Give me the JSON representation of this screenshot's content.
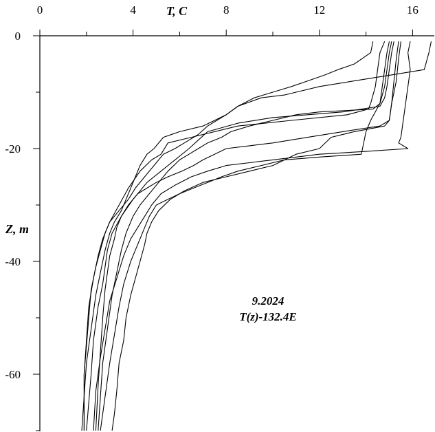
{
  "chart_data": {
    "type": "line",
    "title": "",
    "xlabel": "T, C",
    "ylabel": "Z, m",
    "x_ticks": [
      0,
      4,
      8,
      12,
      16
    ],
    "y_ticks": [
      0,
      -20,
      -40,
      -60
    ],
    "xlim": [
      0,
      16.8
    ],
    "ylim": [
      -70,
      0
    ],
    "grid": false,
    "annotations": [
      "9.2024",
      "T(z)-132.4E"
    ],
    "series": [
      {
        "values": [
          [
            14.8,
            -1
          ],
          [
            14.6,
            -3
          ],
          [
            14.5,
            -6
          ],
          [
            14.4,
            -9
          ],
          [
            14.2,
            -12
          ],
          [
            14.1,
            -13
          ],
          [
            13.2,
            -14
          ],
          [
            10.8,
            -15
          ],
          [
            8.5,
            -16
          ],
          [
            6.5,
            -18
          ],
          [
            5.5,
            -19
          ],
          [
            5.2,
            -21
          ],
          [
            4.8,
            -22
          ],
          [
            4.3,
            -24
          ],
          [
            3.8,
            -27
          ],
          [
            3.4,
            -30
          ],
          [
            3.0,
            -33
          ],
          [
            2.8,
            -35
          ],
          [
            2.6,
            -38
          ],
          [
            2.4,
            -41
          ],
          [
            2.2,
            -45
          ],
          [
            2.1,
            -50
          ],
          [
            2.0,
            -55
          ],
          [
            1.9,
            -60
          ],
          [
            1.9,
            -65
          ],
          [
            1.9,
            -70
          ]
        ]
      },
      {
        "values": [
          [
            15.2,
            -1
          ],
          [
            15.1,
            -3
          ],
          [
            15.0,
            -6
          ],
          [
            14.9,
            -9
          ],
          [
            14.8,
            -11
          ],
          [
            14.6,
            -12.5
          ],
          [
            13.0,
            -13.5
          ],
          [
            11.5,
            -14
          ],
          [
            10.0,
            -14.5
          ],
          [
            8.5,
            -15.5
          ],
          [
            7.2,
            -17
          ],
          [
            6.8,
            -18.5
          ],
          [
            6.4,
            -20
          ],
          [
            5.8,
            -22
          ],
          [
            5.2,
            -24
          ],
          [
            4.6,
            -26
          ],
          [
            4.0,
            -29
          ],
          [
            3.5,
            -32
          ],
          [
            3.1,
            -35
          ],
          [
            2.9,
            -38
          ],
          [
            2.8,
            -41
          ],
          [
            2.7,
            -44
          ],
          [
            2.5,
            -48
          ],
          [
            2.3,
            -54
          ],
          [
            2.2,
            -60
          ],
          [
            2.1,
            -65
          ],
          [
            2.0,
            -70
          ]
        ]
      },
      {
        "values": [
          [
            16.8,
            -1
          ],
          [
            16.7,
            -3
          ],
          [
            16.5,
            -6
          ],
          [
            15.0,
            -7
          ],
          [
            13.5,
            -8
          ],
          [
            12.0,
            -9
          ],
          [
            11.0,
            -10
          ],
          [
            10.5,
            -10.5
          ],
          [
            9.5,
            -11
          ],
          [
            8.5,
            -12.5
          ],
          [
            8.0,
            -14
          ],
          [
            7.5,
            -15
          ],
          [
            7.0,
            -16
          ],
          [
            6.0,
            -17
          ],
          [
            5.3,
            -18
          ],
          [
            4.9,
            -20
          ],
          [
            4.6,
            -21
          ],
          [
            4.3,
            -23
          ],
          [
            4.1,
            -25
          ],
          [
            3.9,
            -27
          ],
          [
            3.7,
            -29
          ],
          [
            3.5,
            -31
          ],
          [
            3.2,
            -33
          ],
          [
            3.0,
            -35
          ],
          [
            2.8,
            -38
          ],
          [
            2.6,
            -42
          ],
          [
            2.4,
            -46
          ],
          [
            2.2,
            -52
          ],
          [
            2.0,
            -58
          ],
          [
            1.9,
            -64
          ],
          [
            1.8,
            -70
          ]
        ]
      },
      {
        "values": [
          [
            15.4,
            -1
          ],
          [
            15.3,
            -4
          ],
          [
            15.2,
            -8
          ],
          [
            15.1,
            -12
          ],
          [
            15.0,
            -15
          ],
          [
            14.6,
            -16
          ],
          [
            13.0,
            -17
          ],
          [
            11.5,
            -18
          ],
          [
            10.0,
            -19
          ],
          [
            9.0,
            -19.5
          ],
          [
            8.0,
            -20
          ],
          [
            7.5,
            -21
          ],
          [
            7.0,
            -22
          ],
          [
            6.6,
            -23
          ],
          [
            6.1,
            -24
          ],
          [
            5.5,
            -25
          ],
          [
            5.0,
            -26
          ],
          [
            4.6,
            -27
          ],
          [
            4.2,
            -28
          ],
          [
            3.8,
            -30
          ],
          [
            3.5,
            -32
          ],
          [
            3.3,
            -34
          ],
          [
            3.2,
            -36
          ],
          [
            3.0,
            -39
          ],
          [
            2.9,
            -42
          ],
          [
            2.8,
            -45
          ],
          [
            2.7,
            -50
          ],
          [
            2.6,
            -56
          ],
          [
            2.5,
            -62
          ],
          [
            2.4,
            -70
          ]
        ]
      },
      {
        "values": [
          [
            15.1,
            -1
          ],
          [
            15.0,
            -3
          ],
          [
            14.9,
            -6
          ],
          [
            14.8,
            -9
          ],
          [
            14.6,
            -12
          ],
          [
            14.3,
            -13
          ],
          [
            12.0,
            -13.5
          ],
          [
            11.0,
            -14
          ],
          [
            10.0,
            -15
          ],
          [
            9.0,
            -16
          ],
          [
            8.2,
            -17
          ],
          [
            7.8,
            -18
          ],
          [
            7.2,
            -19
          ],
          [
            6.8,
            -20
          ],
          [
            6.4,
            -21
          ],
          [
            6.0,
            -22
          ],
          [
            5.5,
            -24
          ],
          [
            5.1,
            -26
          ],
          [
            4.7,
            -28
          ],
          [
            4.3,
            -30
          ],
          [
            4.0,
            -32
          ],
          [
            3.7,
            -35
          ],
          [
            3.5,
            -38
          ],
          [
            3.3,
            -42
          ],
          [
            3.1,
            -46
          ],
          [
            2.9,
            -52
          ],
          [
            2.7,
            -58
          ],
          [
            2.6,
            -64
          ],
          [
            2.5,
            -70
          ]
        ]
      },
      {
        "values": [
          [
            15.9,
            -1
          ],
          [
            15.8,
            -3
          ],
          [
            15.9,
            -6
          ],
          [
            15.8,
            -9
          ],
          [
            15.7,
            -12
          ],
          [
            15.6,
            -15
          ],
          [
            15.5,
            -18
          ],
          [
            15.4,
            -19
          ],
          [
            15.8,
            -20
          ],
          [
            14.0,
            -20.5
          ],
          [
            12.0,
            -21
          ],
          [
            11.0,
            -21.5
          ],
          [
            10.0,
            -22
          ],
          [
            9.0,
            -22.5
          ],
          [
            8.0,
            -23
          ],
          [
            7.2,
            -24
          ],
          [
            6.5,
            -25
          ],
          [
            5.8,
            -26.5
          ],
          [
            5.2,
            -28
          ],
          [
            4.8,
            -30
          ],
          [
            4.5,
            -32
          ],
          [
            4.2,
            -34
          ],
          [
            3.9,
            -36
          ],
          [
            3.6,
            -39
          ],
          [
            3.3,
            -43
          ],
          [
            3.0,
            -47
          ],
          [
            2.8,
            -52
          ],
          [
            2.6,
            -57
          ],
          [
            2.4,
            -63
          ],
          [
            2.3,
            -70
          ]
        ]
      },
      {
        "values": [
          [
            15.0,
            -1
          ],
          [
            14.9,
            -3
          ],
          [
            14.8,
            -6
          ],
          [
            14.7,
            -9
          ],
          [
            14.6,
            -12
          ],
          [
            14.2,
            -15
          ],
          [
            14.0,
            -17
          ],
          [
            13.9,
            -19
          ],
          [
            13.8,
            -21
          ],
          [
            12.0,
            -21.5
          ],
          [
            10.5,
            -22
          ],
          [
            9.5,
            -23
          ],
          [
            8.5,
            -24
          ],
          [
            7.8,
            -25
          ],
          [
            7.2,
            -26
          ],
          [
            6.6,
            -27
          ],
          [
            6.0,
            -28
          ],
          [
            5.5,
            -29
          ],
          [
            5.0,
            -30
          ],
          [
            4.7,
            -32
          ],
          [
            4.5,
            -34
          ],
          [
            4.3,
            -36
          ],
          [
            4.1,
            -38
          ],
          [
            3.9,
            -40
          ],
          [
            3.6,
            -44
          ],
          [
            3.4,
            -48
          ],
          [
            3.2,
            -53
          ],
          [
            3.0,
            -58
          ],
          [
            2.8,
            -64
          ],
          [
            2.6,
            -70
          ]
        ]
      },
      {
        "values": [
          [
            15.5,
            -1
          ],
          [
            15.4,
            -4
          ],
          [
            15.3,
            -8
          ],
          [
            15.1,
            -12
          ],
          [
            15.0,
            -15
          ],
          [
            14.8,
            -16
          ],
          [
            13.5,
            -17
          ],
          [
            12.5,
            -18
          ],
          [
            12.0,
            -20
          ],
          [
            11.0,
            -21
          ],
          [
            10.0,
            -23
          ],
          [
            9.0,
            -24
          ],
          [
            8.0,
            -25
          ],
          [
            7.0,
            -26
          ],
          [
            6.2,
            -27.5
          ],
          [
            5.6,
            -29
          ],
          [
            5.1,
            -31
          ],
          [
            4.8,
            -33
          ],
          [
            4.6,
            -35
          ],
          [
            4.5,
            -37
          ],
          [
            4.3,
            -40
          ],
          [
            4.1,
            -43
          ],
          [
            3.9,
            -46
          ],
          [
            3.7,
            -50
          ],
          [
            3.6,
            -54
          ],
          [
            3.4,
            -58
          ],
          [
            3.3,
            -63
          ],
          [
            3.2,
            -67
          ],
          [
            3.1,
            -70
          ]
        ]
      },
      {
        "values": [
          [
            14.3,
            -1
          ],
          [
            14.2,
            -3
          ],
          [
            13.5,
            -5
          ],
          [
            12.8,
            -6
          ],
          [
            12.2,
            -7
          ],
          [
            11.5,
            -8
          ],
          [
            10.8,
            -9
          ],
          [
            10.0,
            -10
          ],
          [
            9.2,
            -11
          ],
          [
            8.5,
            -12.5
          ],
          [
            8.0,
            -14
          ],
          [
            7.6,
            -15
          ],
          [
            7.2,
            -16
          ],
          [
            6.8,
            -17.5
          ],
          [
            6.2,
            -19
          ],
          [
            5.8,
            -20
          ],
          [
            5.3,
            -21
          ],
          [
            4.9,
            -23
          ],
          [
            4.5,
            -25
          ],
          [
            4.1,
            -27
          ],
          [
            3.8,
            -29
          ],
          [
            3.4,
            -31
          ],
          [
            3.0,
            -33
          ],
          [
            2.7,
            -36
          ],
          [
            2.5,
            -39
          ],
          [
            2.3,
            -43
          ],
          [
            2.1,
            -48
          ],
          [
            2.0,
            -54
          ],
          [
            1.9,
            -60
          ],
          [
            1.9,
            -65
          ],
          [
            1.9,
            -70
          ]
        ]
      }
    ]
  }
}
